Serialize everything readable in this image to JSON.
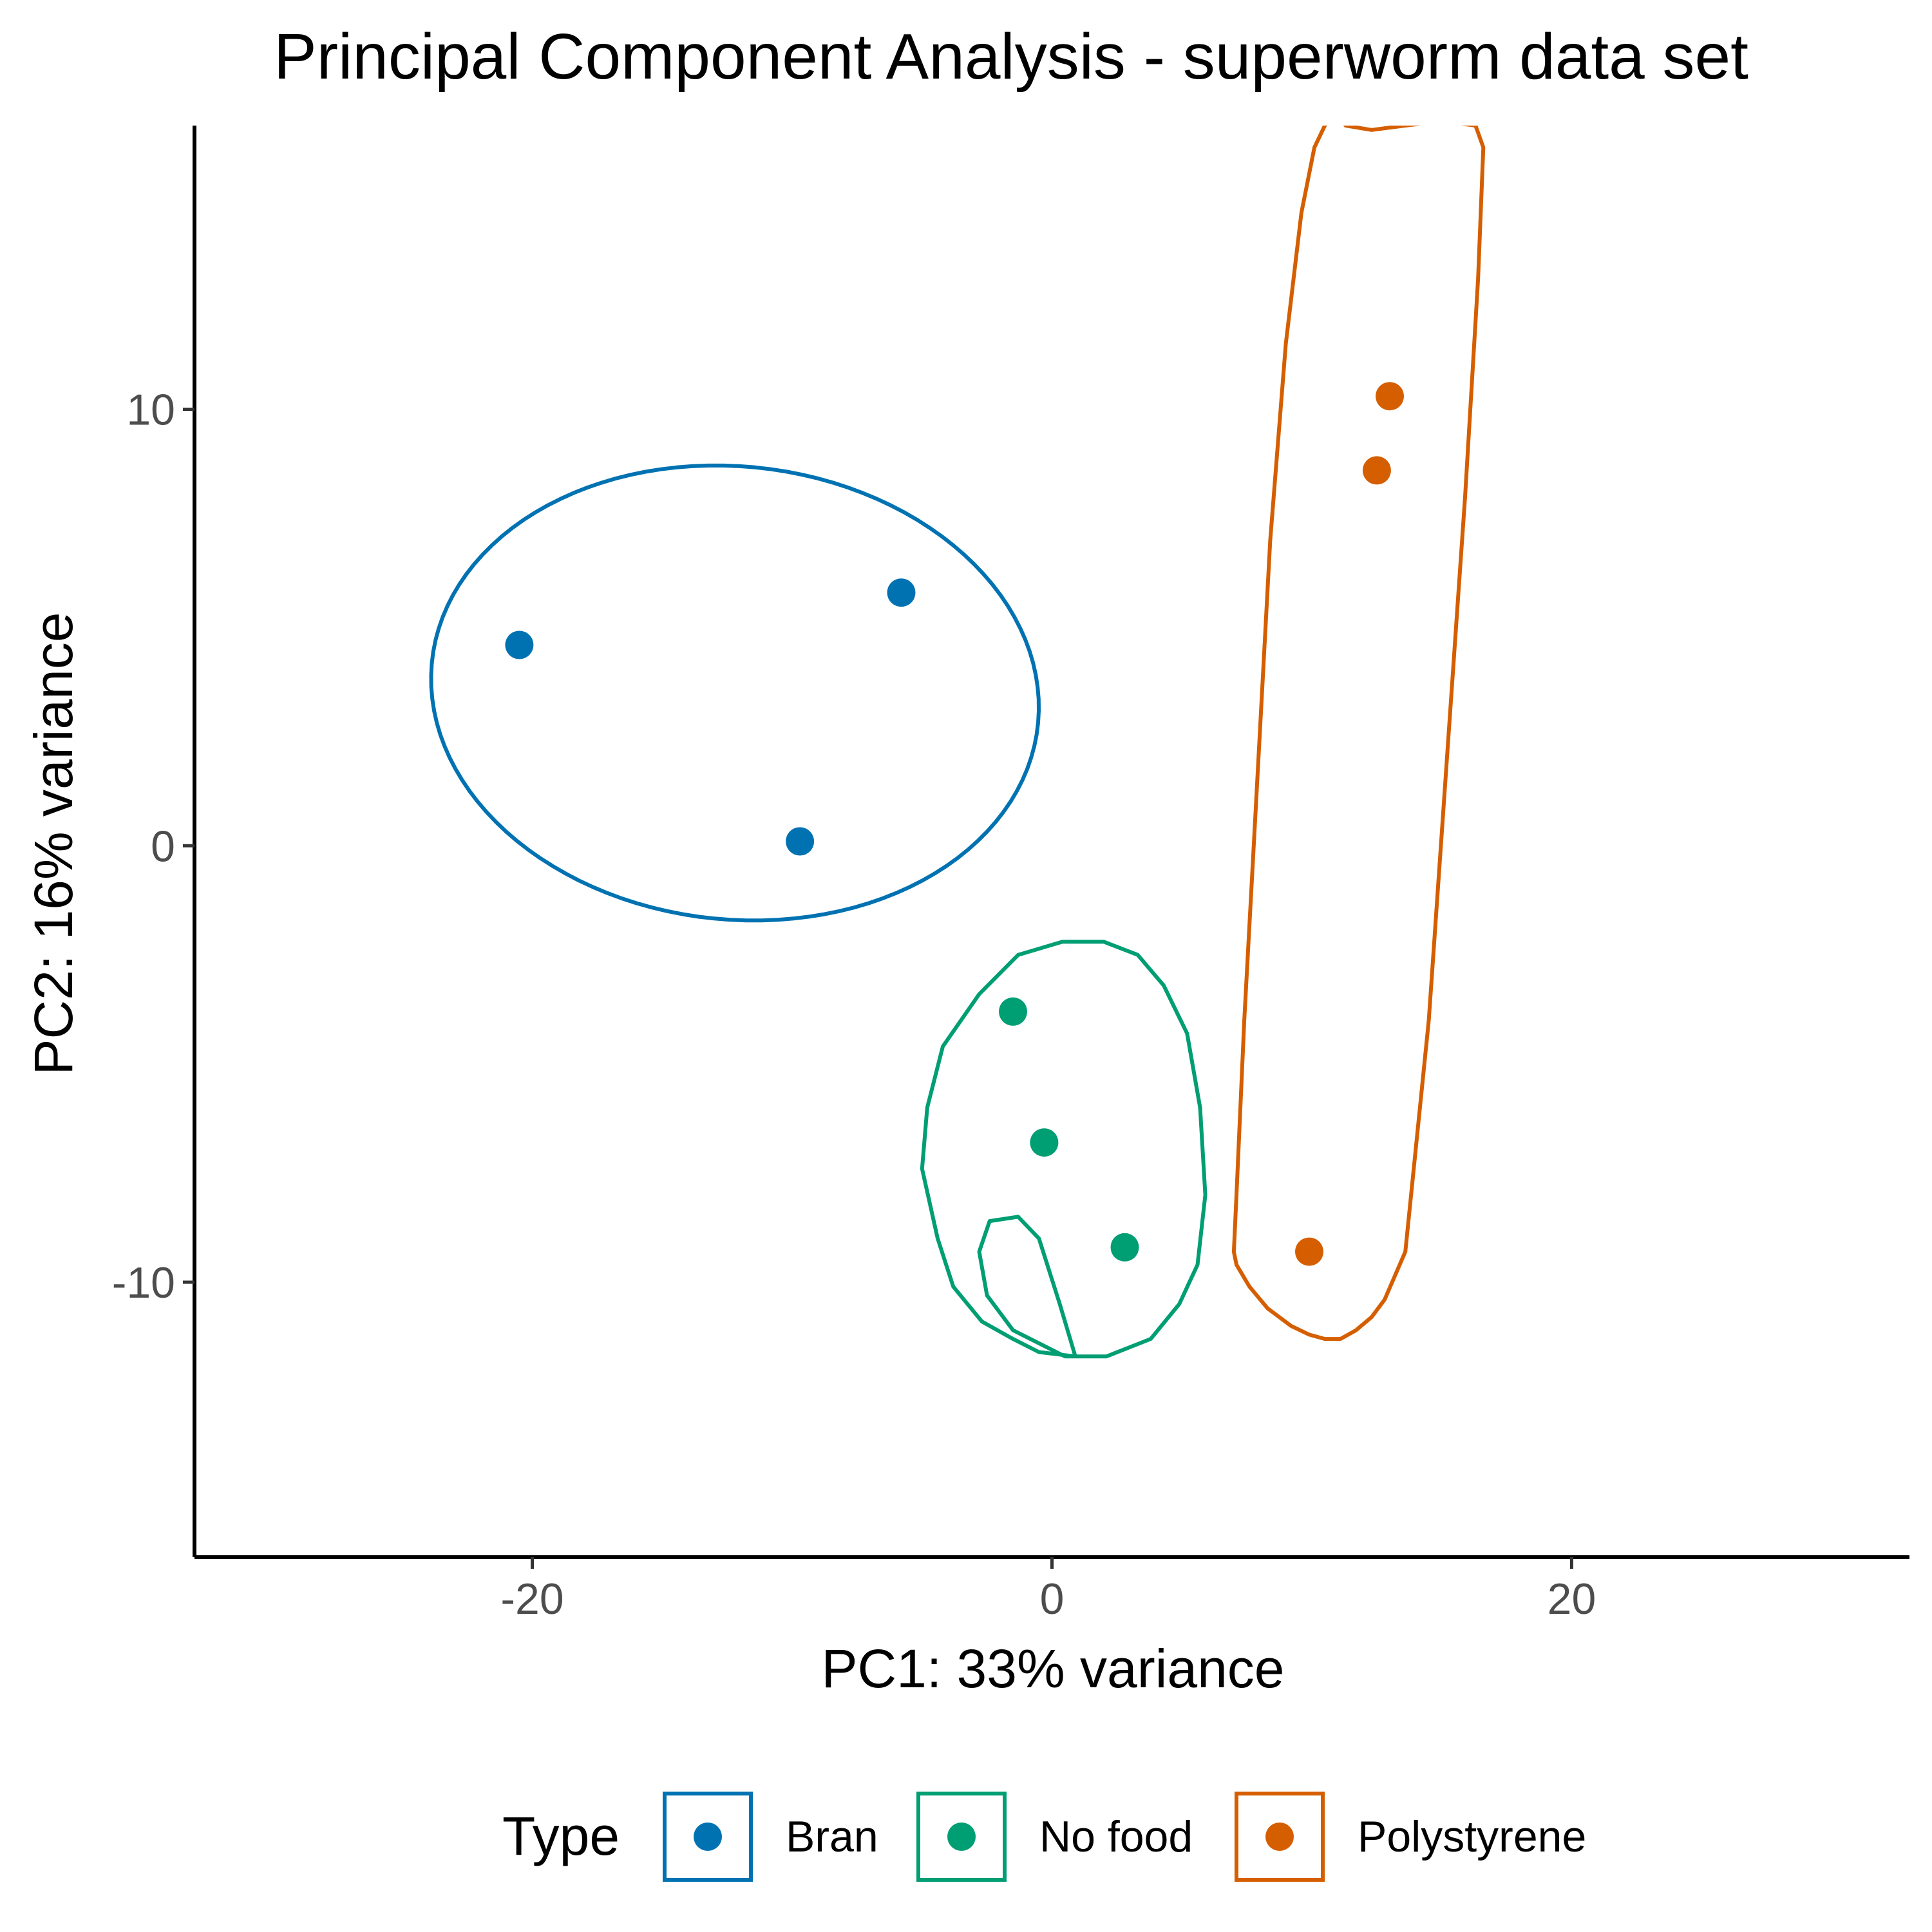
{
  "chart_data": {
    "type": "scatter",
    "title": "Principal Component Analysis - superworm data set",
    "xlabel": "PC1: 33% variance",
    "ylabel": "PC2: 16% variance",
    "xlim": [
      -33,
      33
    ],
    "ylim": [
      -16.3,
      16.5
    ],
    "x_ticks": [
      -20,
      0,
      20
    ],
    "y_ticks": [
      -10,
      0,
      10
    ],
    "x_tick_labels": [
      "-20",
      "0",
      "20"
    ],
    "y_tick_labels": [
      "-10",
      "0",
      "10"
    ],
    "grid": false,
    "legend": {
      "title": "Type",
      "position": "bottom"
    },
    "series": [
      {
        "name": "Bran",
        "color": "#0072B2",
        "x": [
          -20.5,
          -5.8,
          -9.7
        ],
        "y": [
          4.6,
          5.8,
          0.1
        ],
        "ellipse": {
          "type": "ellipse",
          "cx": -12.2,
          "cy": 3.5,
          "rx": 11.7,
          "ry": 5.2,
          "angle": -2
        }
      },
      {
        "name": "No food",
        "color": "#009E73",
        "x": [
          -1.5,
          -0.3,
          2.8
        ],
        "y": [
          -3.8,
          -6.8,
          -9.2
        ],
        "ellipse": {
          "type": "polygon",
          "px": [
            0.9,
            -0.5,
            -1.5,
            -2.7,
            -3.8,
            -4.4,
            -5.0,
            -4.8,
            -4.2,
            -2.8,
            -1.3,
            0.4,
            1.4,
            2.0,
            3.3,
            4.3,
            5.2,
            5.7,
            5.9,
            5.6,
            4.9,
            3.8,
            2.1,
            0.5,
            -1.5,
            -2.5,
            -2.8,
            -2.4,
            -1.3,
            -0.5,
            0.3,
            0.9
          ],
          "py": [
            -11.7,
            -11.6,
            -11.3,
            -10.9,
            -10.1,
            -9.0,
            -7.4,
            -6.0,
            -4.6,
            -3.4,
            -2.5,
            -2.2,
            -2.2,
            -2.2,
            -2.5,
            -3.2,
            -4.3,
            -6.0,
            -8.0,
            -9.6,
            -10.5,
            -11.3,
            -11.7,
            -11.7,
            -11.1,
            -10.3,
            -9.3,
            -8.6,
            -8.5,
            -9.0,
            -10.5,
            -11.7
          ]
        }
      },
      {
        "name": "Polystyrene",
        "color": "#D55E00",
        "x": [
          13.0,
          12.5,
          9.9
        ],
        "y": [
          10.3,
          8.6,
          -9.3
        ],
        "ellipse": {
          "type": "polygon",
          "px": [
            10.5,
            11.0,
            11.3,
            12.3,
            13.6,
            15.0,
            16.3,
            16.6,
            16.4,
            15.9,
            15.2,
            14.5,
            13.6,
            12.8,
            12.3,
            11.7,
            11.1,
            10.5,
            9.9,
            9.2,
            8.3,
            7.6,
            7.1,
            7.0,
            7.1,
            7.4,
            7.9,
            8.4,
            9.0,
            9.6,
            10.1,
            10.5
          ],
          "py": [
            16.5,
            16.8,
            16.5,
            16.4,
            16.5,
            16.6,
            16.5,
            16.0,
            13.0,
            8.0,
            2.0,
            -4.0,
            -9.3,
            -10.4,
            -10.8,
            -11.1,
            -11.3,
            -11.3,
            -11.2,
            -11.0,
            -10.6,
            -10.1,
            -9.6,
            -9.3,
            -8.0,
            -4.0,
            1.5,
            7.0,
            11.5,
            14.5,
            16.0,
            16.5
          ]
        }
      }
    ]
  }
}
